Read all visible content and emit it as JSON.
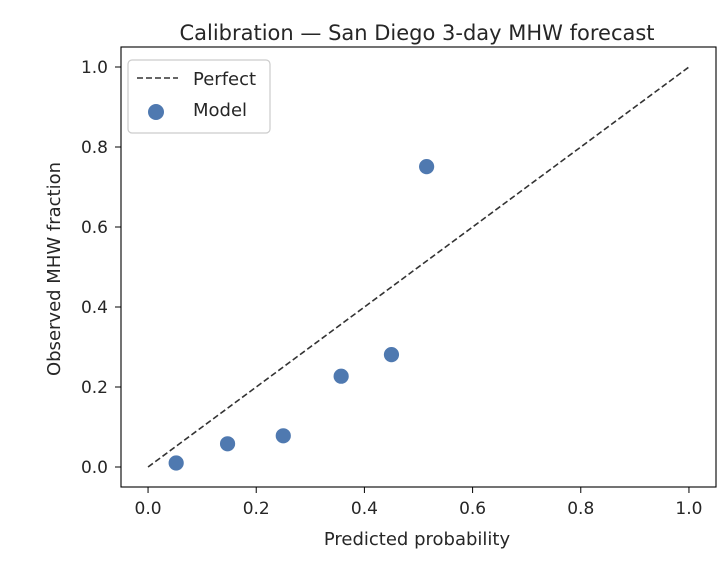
{
  "chart_data": {
    "type": "scatter",
    "title": "Calibration — San Diego 3-day MHW forecast",
    "xlabel": "Predicted probability",
    "ylabel": "Observed MHW fraction",
    "xlim": [
      -0.05,
      1.05
    ],
    "ylim": [
      -0.05,
      1.05
    ],
    "x_ticks": [
      0.0,
      0.2,
      0.4,
      0.6,
      0.8,
      1.0
    ],
    "y_ticks": [
      0.0,
      0.2,
      0.4,
      0.6,
      0.8,
      1.0
    ],
    "x_tick_labels": [
      "0.0",
      "0.2",
      "0.4",
      "0.6",
      "0.8",
      "1.0"
    ],
    "y_tick_labels": [
      "0.0",
      "0.2",
      "0.4",
      "0.6",
      "0.8",
      "1.0"
    ],
    "grid": false,
    "legend": {
      "position": "upper-left",
      "entries": [
        "Perfect",
        "Model"
      ]
    },
    "series": [
      {
        "name": "Perfect",
        "kind": "line",
        "style": "dashed",
        "color": "#333333",
        "x": [
          0.0,
          1.0
        ],
        "y": [
          0.0,
          1.0
        ]
      },
      {
        "name": "Model",
        "kind": "scatter",
        "color": "#4f79b0",
        "x": [
          0.052,
          0.147,
          0.25,
          0.357,
          0.45,
          0.515
        ],
        "y": [
          0.01,
          0.058,
          0.078,
          0.227,
          0.281,
          0.751
        ]
      }
    ]
  }
}
